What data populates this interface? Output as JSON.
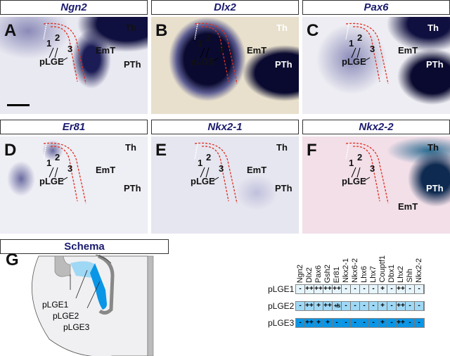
{
  "panels": [
    {
      "letter": "A",
      "title": "Ngn2",
      "labels": {
        "th": "Th",
        "pth": "PTh",
        "emt": "EmT",
        "plge": "pLGE",
        "n1": "1",
        "n2": "2",
        "n3": "3"
      }
    },
    {
      "letter": "B",
      "title": "Dlx2",
      "labels": {
        "th": "Th",
        "pth": "PTh",
        "emt": "EmT",
        "plge": "pLGE",
        "n1": "1",
        "n2": "2",
        "n3": "3"
      }
    },
    {
      "letter": "C",
      "title": "Pax6",
      "labels": {
        "th": "Th",
        "pth": "PTh",
        "emt": "EmT",
        "plge": "pLGE",
        "n1": "1",
        "n2": "2",
        "n3": "3"
      }
    },
    {
      "letter": "D",
      "title": "Er81",
      "labels": {
        "th": "Th",
        "pth": "PTh",
        "emt": "EmT",
        "plge": "pLGE",
        "n1": "1",
        "n2": "2",
        "n3": "3"
      }
    },
    {
      "letter": "E",
      "title": "Nkx2-1",
      "labels": {
        "th": "Th",
        "pth": "PTh",
        "emt": "EmT",
        "plge": "pLGE",
        "n1": "1",
        "n2": "2",
        "n3": "3"
      }
    },
    {
      "letter": "F",
      "title": "Nkx2-2",
      "labels": {
        "th": "Th",
        "pth": "PTh",
        "emt": "EmT",
        "plge": "pLGE",
        "n1": "1",
        "n2": "2",
        "n3": "3"
      }
    }
  ],
  "schema": {
    "title": "Schema",
    "letter": "G",
    "labels": [
      "pLGE1",
      "pLGE2",
      "pLGE3"
    ]
  },
  "table": {
    "genes": [
      "Ngn2",
      "Dlx2",
      "Pax6",
      "Gsh2",
      "Er81",
      "Nkx2-1",
      "Nkx6-2",
      "Lhx6",
      "Lhx7",
      "Couptf1",
      "Dbx1",
      "Lhx2",
      "Shh",
      "Nkx2-2"
    ],
    "rows": [
      {
        "label": "pLGE1",
        "color": "#e6f4fc",
        "values": [
          "-",
          "++",
          "++",
          "++",
          "++",
          "-",
          "-",
          "-",
          "-",
          "+",
          "-",
          "++",
          "-",
          "-"
        ]
      },
      {
        "label": "pLGE2",
        "color": "#9fd8f5",
        "values": [
          "-",
          "++",
          "+",
          "++",
          "+/s",
          "-",
          "-",
          "-",
          "-",
          "+",
          "-",
          "++",
          "-",
          "-"
        ]
      },
      {
        "label": "pLGE3",
        "color": "#0a96e6",
        "values": [
          "-",
          "++",
          "+",
          "+",
          "-",
          "-",
          "-",
          "-",
          "-",
          "+",
          "-",
          "++",
          "-",
          "-"
        ]
      }
    ]
  }
}
